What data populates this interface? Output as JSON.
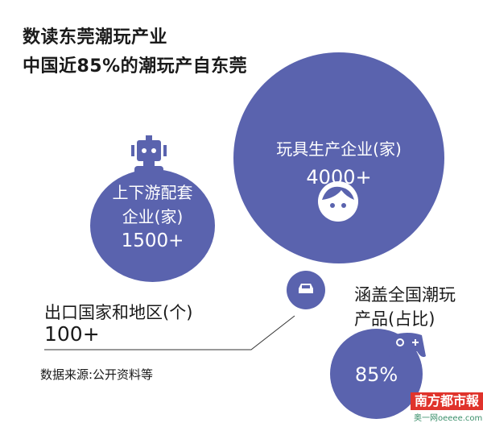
{
  "title": {
    "line1": "数读东莞潮玩产业",
    "line2": "中国近85%的潮玩产自东莞"
  },
  "bubbles": {
    "toy_makers": {
      "label": "玩具生产企业(家)",
      "value": "4000+",
      "icon": "face-icon"
    },
    "supply_chain": {
      "label_line1": "上下游配套",
      "label_line2": "企业(家)",
      "value": "1500+",
      "icon": "robot-icon"
    },
    "export": {
      "label": "出口国家和地区(个)",
      "value": "100+",
      "icon": "car-icon"
    },
    "coverage": {
      "label_line1": "涵盖全国潮玩",
      "label_line2": "产品(占比)",
      "value": "85%",
      "icon": "gamepad-icon"
    }
  },
  "source": "数据来源:公开资料等",
  "logo": {
    "name": "南方都市報",
    "sub": "奥一网oeeee.com"
  },
  "colors": {
    "bubble": "#5a63ae",
    "logo": "#e0332b"
  }
}
